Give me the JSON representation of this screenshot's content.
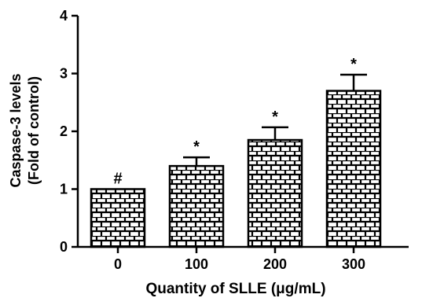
{
  "chart_data": {
    "type": "bar",
    "categories": [
      "0",
      "100",
      "200",
      "300"
    ],
    "values": [
      1.0,
      1.4,
      1.85,
      2.7
    ],
    "errors": [
      0.0,
      0.15,
      0.22,
      0.28
    ],
    "annotations": [
      "#",
      "*",
      "*",
      "*"
    ],
    "xlabel": "Quantity of SLLE (μg/mL)",
    "ylabel_lines": [
      "Caspase-3 levels",
      "(Fold of control)"
    ],
    "ylim": [
      0,
      4
    ],
    "yticks": [
      "0",
      "1",
      "2",
      "3",
      "4"
    ],
    "grid": false,
    "bar_pattern": "brick hatch",
    "colors": {
      "bar_fill": "#ffffff",
      "pattern": "#000000",
      "axis": "#000000"
    }
  }
}
